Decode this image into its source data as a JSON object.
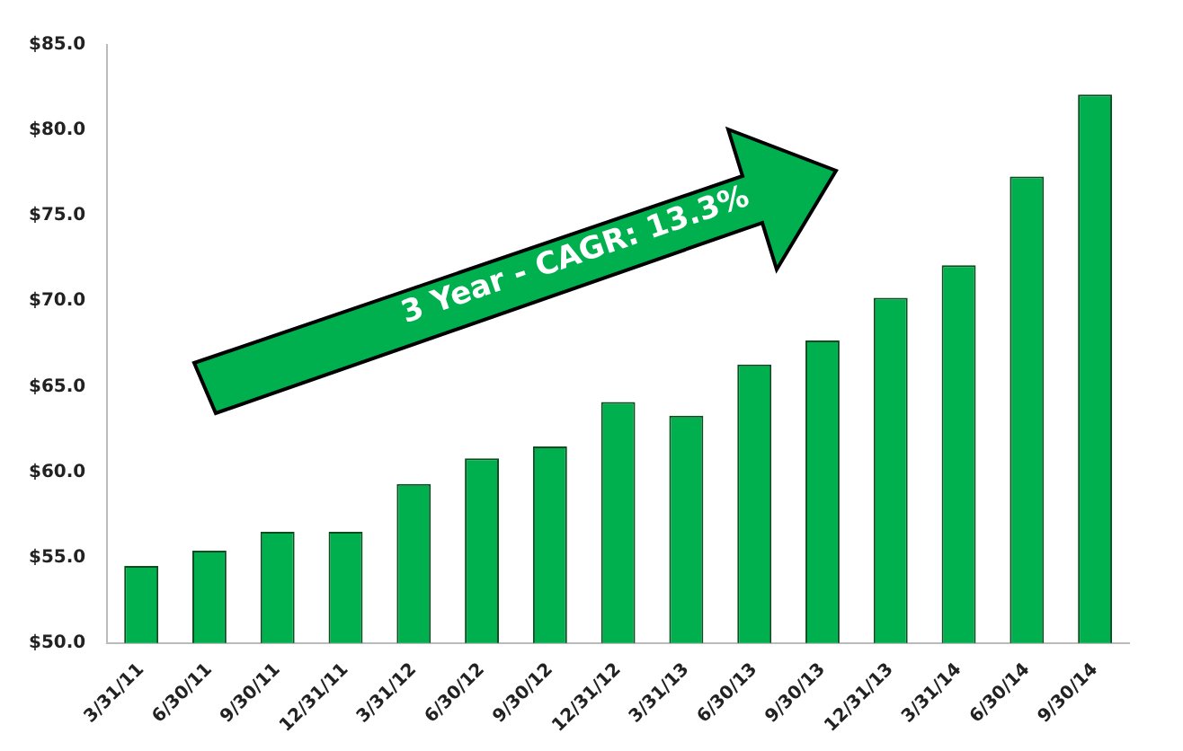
{
  "chart_data": {
    "type": "bar",
    "categories": [
      "3/31/11",
      "6/30/11",
      "9/30/11",
      "12/31/11",
      "3/31/12",
      "6/30/12",
      "9/30/12",
      "12/31/12",
      "3/31/13",
      "6/30/13",
      "9/30/13",
      "12/31/13",
      "3/31/14",
      "6/30/14",
      "9/30/14"
    ],
    "values": [
      54.5,
      55.4,
      56.5,
      56.5,
      59.3,
      60.8,
      61.5,
      64.1,
      63.3,
      66.3,
      67.7,
      70.2,
      72.1,
      77.3,
      82.1
    ],
    "color": "#00b04f",
    "ylim": [
      50,
      85
    ],
    "yticks": [
      {
        "value": 50,
        "label": "$50.0"
      },
      {
        "value": 55,
        "label": "$55.0"
      },
      {
        "value": 60,
        "label": "$60.0"
      },
      {
        "value": 65,
        "label": "$65.0"
      },
      {
        "value": 70,
        "label": "$70.0"
      },
      {
        "value": 75,
        "label": "$75.0"
      },
      {
        "value": 80,
        "label": "$80.0"
      },
      {
        "value": 85,
        "label": "$85.0"
      }
    ],
    "grid": false,
    "legend": false,
    "annotations": [
      "3 Year - CAGR: 13.3%"
    ]
  }
}
